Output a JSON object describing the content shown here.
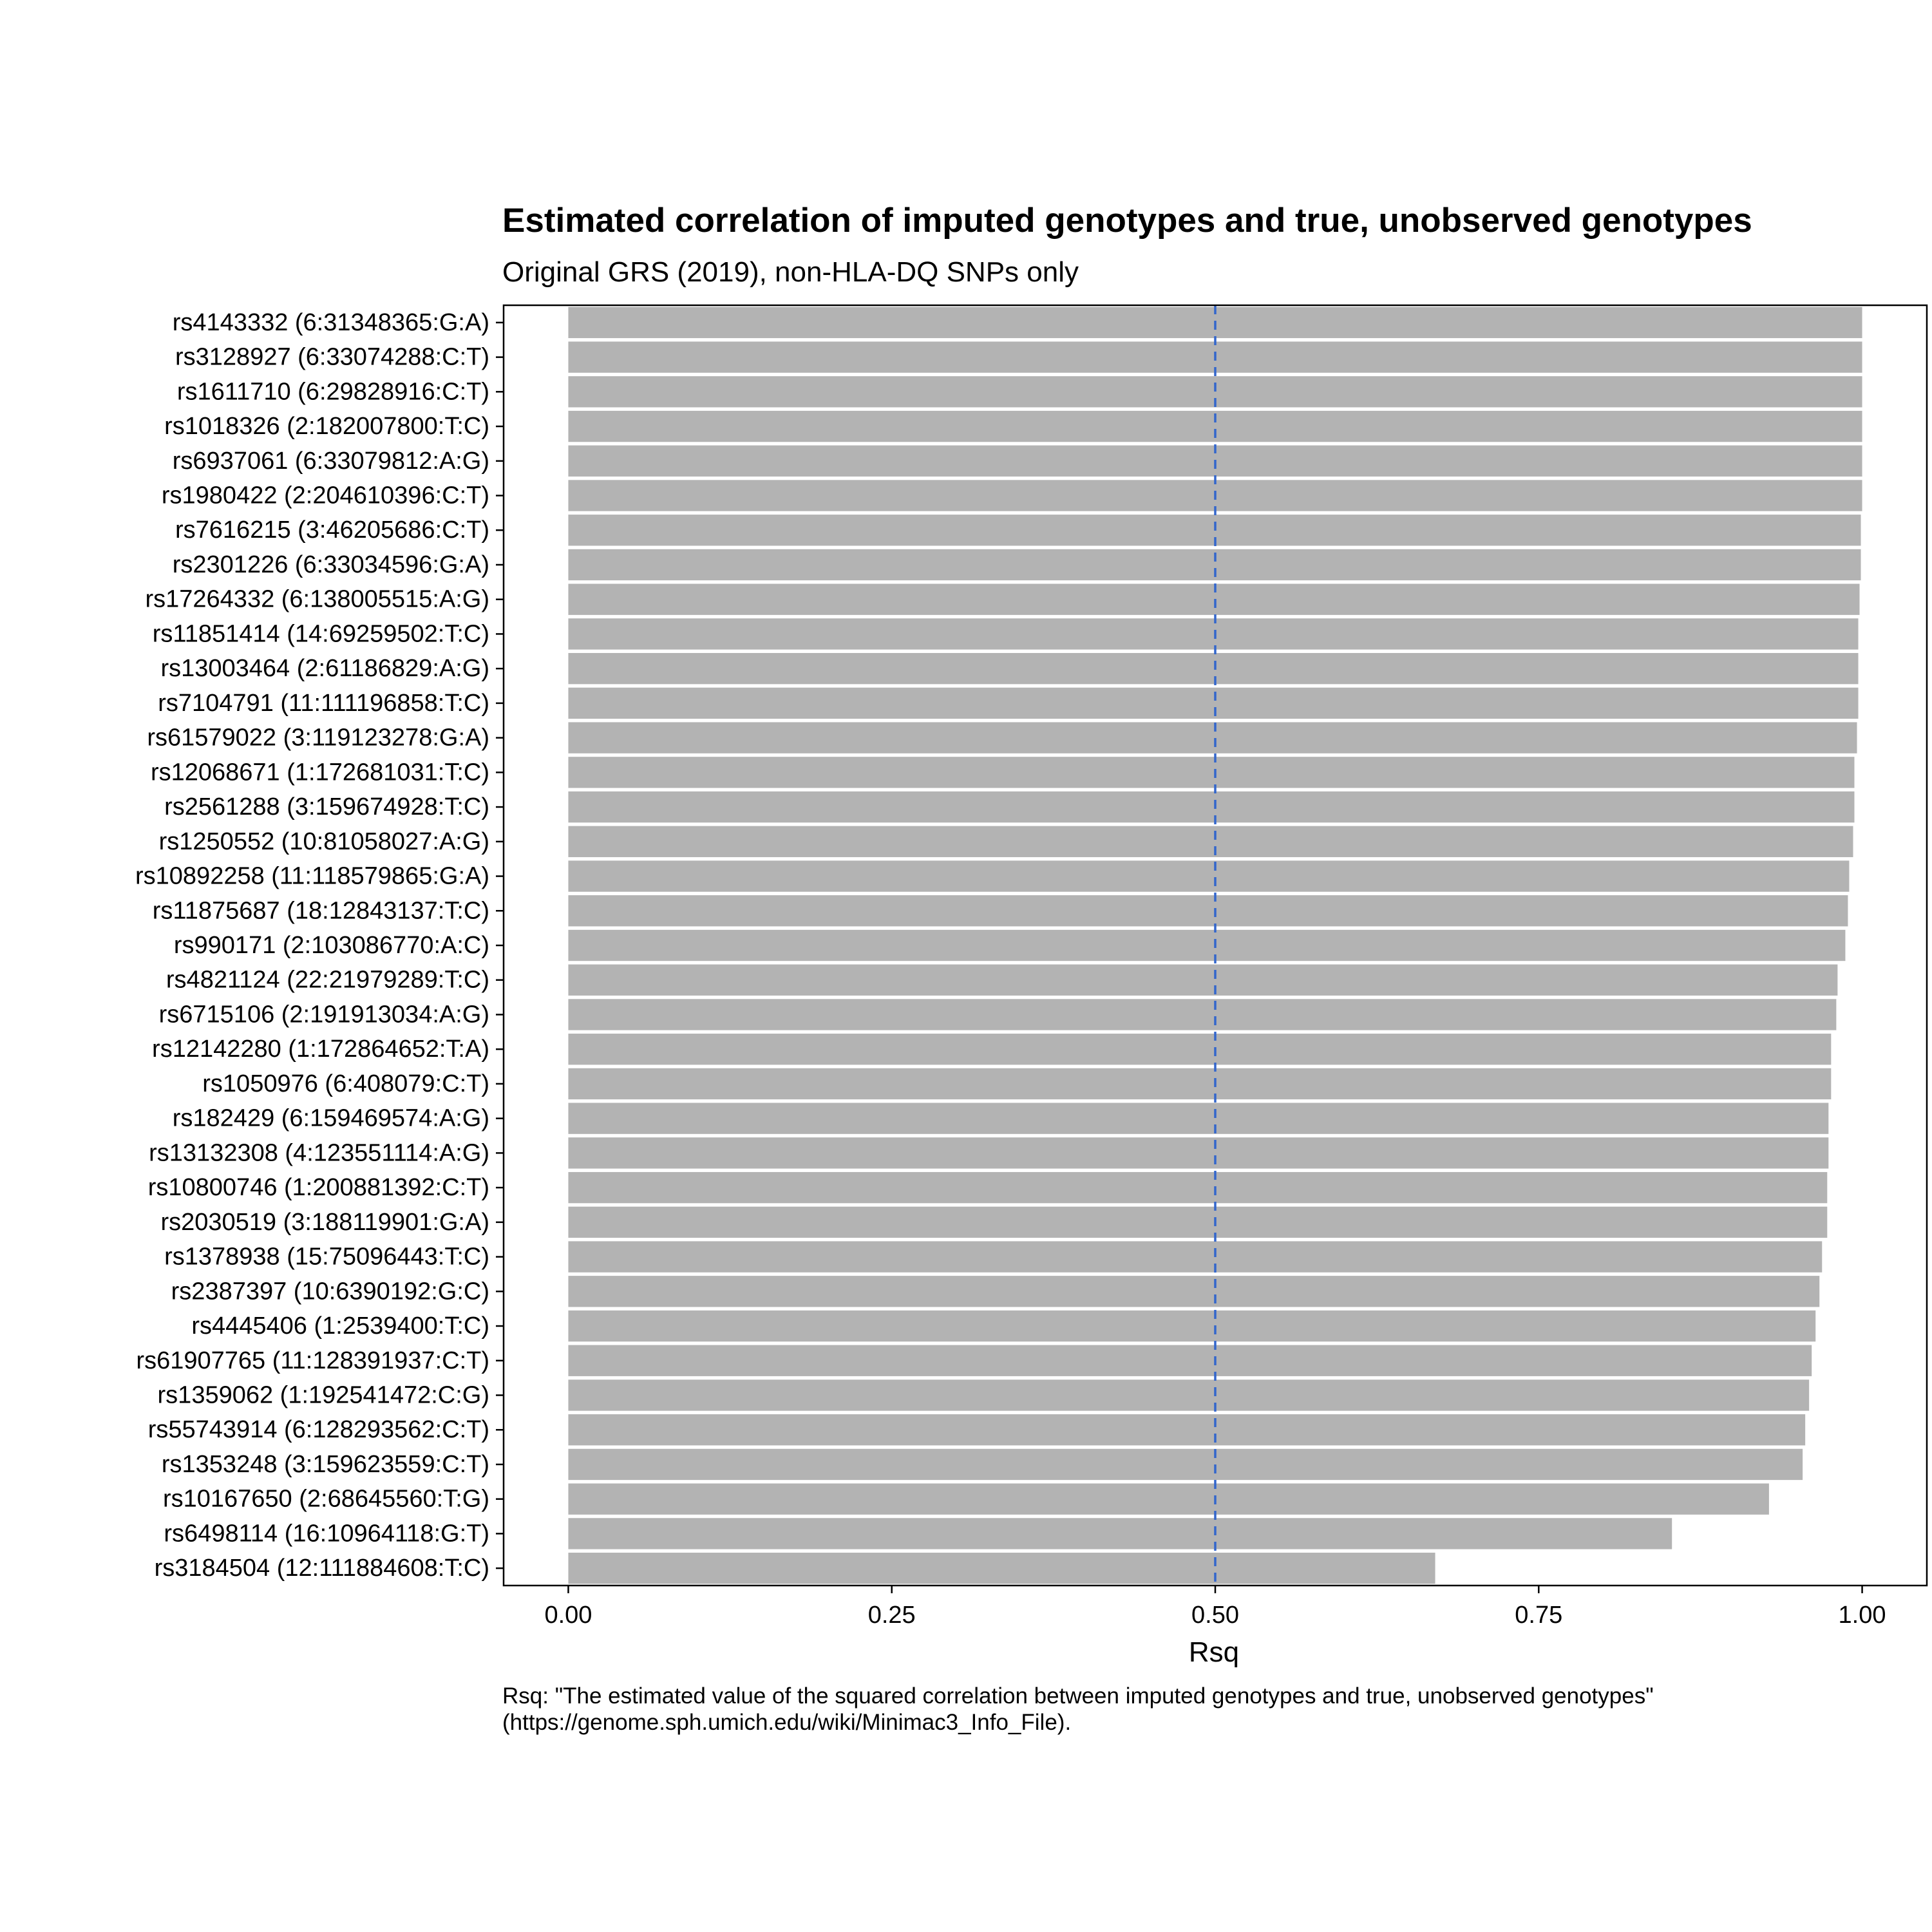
{
  "chart_data": {
    "type": "bar",
    "orientation": "horizontal",
    "title": "Estimated correlation of imputed genotypes and true, unobserved genotypes",
    "subtitle": "Original GRS (2019), non-HLA-DQ SNPs only",
    "xlabel": "Rsq",
    "ylabel": "",
    "xlim": [
      -0.05,
      1.05
    ],
    "x_ticks": [
      "0.00",
      "0.25",
      "0.50",
      "0.75",
      "1.00"
    ],
    "x_tick_values": [
      0,
      0.25,
      0.5,
      0.75,
      1.0
    ],
    "reference_line": {
      "x": 0.5,
      "style": "dashed",
      "color": "#3366cc"
    },
    "bar_color": "#b3b3b3",
    "grid": false,
    "categories": [
      "rs4143332 (6:31348365:G:A)",
      "rs3128927 (6:33074288:C:T)",
      "rs1611710 (6:29828916:C:T)",
      "rs1018326 (2:182007800:T:C)",
      "rs6937061 (6:33079812:A:G)",
      "rs1980422 (2:204610396:C:T)",
      "rs7616215 (3:46205686:C:T)",
      "rs2301226 (6:33034596:G:A)",
      "rs17264332 (6:138005515:A:G)",
      "rs11851414 (14:69259502:T:C)",
      "rs13003464 (2:61186829:A:G)",
      "rs7104791 (11:111196858:T:C)",
      "rs61579022 (3:119123278:G:A)",
      "rs12068671 (1:172681031:T:C)",
      "rs2561288 (3:159674928:T:C)",
      "rs1250552 (10:81058027:A:G)",
      "rs10892258 (11:118579865:G:A)",
      "rs11875687 (18:12843137:T:C)",
      "rs990171 (2:103086770:A:C)",
      "rs4821124 (22:21979289:T:C)",
      "rs6715106 (2:191913034:A:G)",
      "rs12142280 (1:172864652:T:A)",
      "rs1050976 (6:408079:C:T)",
      "rs182429 (6:159469574:A:G)",
      "rs13132308 (4:123551114:A:G)",
      "rs10800746 (1:200881392:C:T)",
      "rs2030519 (3:188119901:G:A)",
      "rs1378938 (15:75096443:T:C)",
      "rs2387397 (10:6390192:G:C)",
      "rs4445406 (1:2539400:T:C)",
      "rs61907765 (11:128391937:C:T)",
      "rs1359062 (1:192541472:C:G)",
      "rs55743914 (6:128293562:C:T)",
      "rs1353248 (3:159623559:C:T)",
      "rs10167650 (2:68645560:T:G)",
      "rs6498114 (16:10964118:G:T)",
      "rs3184504 (12:111884608:T:C)"
    ],
    "values": [
      1.0,
      1.0,
      1.0,
      1.0,
      1.0,
      1.0,
      0.999,
      0.999,
      0.998,
      0.997,
      0.997,
      0.997,
      0.996,
      0.994,
      0.994,
      0.993,
      0.99,
      0.989,
      0.987,
      0.981,
      0.98,
      0.976,
      0.976,
      0.974,
      0.974,
      0.973,
      0.973,
      0.969,
      0.967,
      0.964,
      0.961,
      0.959,
      0.956,
      0.954,
      0.928,
      0.853,
      0.67
    ],
    "caption_lines": [
      "Rsq: \"The estimated value of the squared correlation between imputed genotypes and true, unobserved genotypes\"",
      "(https://genome.sph.umich.edu/wiki/Minimac3_Info_File)."
    ]
  }
}
